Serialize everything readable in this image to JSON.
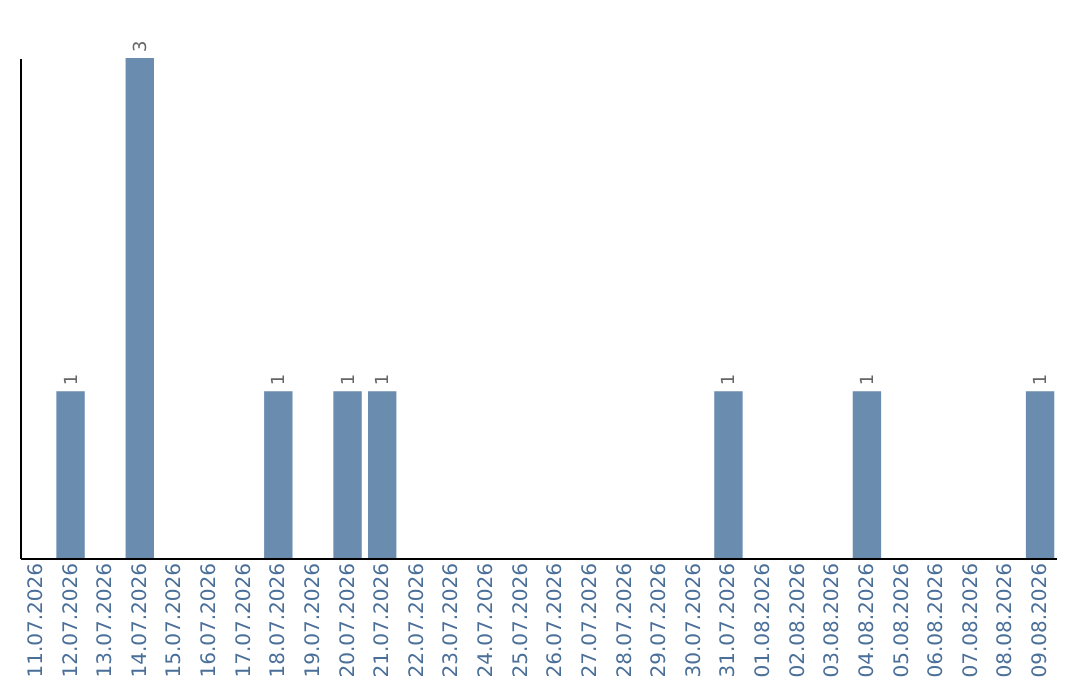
{
  "chart_data": {
    "type": "bar",
    "categories": [
      "11.07.2026",
      "12.07.2026",
      "13.07.2026",
      "14.07.2026",
      "15.07.2026",
      "16.07.2026",
      "17.07.2026",
      "18.07.2026",
      "19.07.2026",
      "20.07.2026",
      "21.07.2026",
      "22.07.2026",
      "23.07.2026",
      "24.07.2026",
      "25.07.2026",
      "26.07.2026",
      "27.07.2026",
      "28.07.2026",
      "29.07.2026",
      "30.07.2026",
      "31.07.2026",
      "01.08.2026",
      "02.08.2026",
      "03.08.2026",
      "04.08.2026",
      "05.08.2026",
      "06.08.2026",
      "07.08.2026",
      "08.08.2026",
      "09.08.2026"
    ],
    "values": [
      0,
      1,
      0,
      3,
      0,
      0,
      0,
      1,
      0,
      1,
      1,
      0,
      0,
      0,
      0,
      0,
      0,
      0,
      0,
      0,
      1,
      0,
      0,
      0,
      1,
      0,
      0,
      0,
      0,
      1
    ],
    "value_labels": [
      null,
      "1",
      null,
      "3",
      null,
      null,
      null,
      "1",
      null,
      "1",
      "1",
      null,
      null,
      null,
      null,
      null,
      null,
      null,
      null,
      null,
      "1",
      null,
      null,
      null,
      "1",
      null,
      null,
      null,
      null,
      "1"
    ],
    "color": "#6a8caf",
    "ylim": [
      0,
      3
    ],
    "grid": false,
    "tick_labels": "x"
  }
}
